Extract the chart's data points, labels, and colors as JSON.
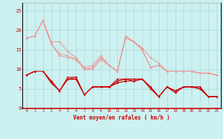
{
  "title": "Vent moyen/en rafales ( km/h )",
  "background_color": "#cdf0f0",
  "grid_color": "#aad8d8",
  "x_values": [
    0,
    1,
    2,
    3,
    4,
    5,
    6,
    7,
    8,
    9,
    10,
    11,
    12,
    13,
    14,
    15,
    16,
    17,
    18,
    19,
    20,
    21,
    22,
    23
  ],
  "lines_light": [
    [
      18.0,
      18.5,
      22.5,
      17.0,
      17.0,
      14.5,
      13.0,
      10.5,
      11.0,
      13.5,
      11.0,
      9.5,
      18.5,
      17.0,
      15.5,
      13.0,
      11.5,
      9.5,
      9.5,
      9.5,
      9.5,
      9.0,
      9.0,
      8.5
    ],
    [
      18.0,
      18.5,
      22.5,
      16.5,
      14.0,
      13.5,
      12.5,
      10.0,
      10.5,
      13.0,
      11.0,
      9.5,
      18.5,
      17.0,
      15.0,
      10.5,
      11.0,
      9.5,
      9.5,
      9.5,
      9.5,
      9.0,
      9.0,
      8.5
    ],
    [
      18.0,
      18.5,
      22.5,
      16.5,
      13.5,
      13.0,
      12.5,
      10.0,
      10.0,
      12.5,
      11.0,
      9.5,
      18.0,
      17.0,
      15.0,
      10.5,
      11.0,
      9.5,
      9.5,
      9.5,
      9.5,
      9.0,
      9.0,
      8.5
    ]
  ],
  "lines_dark": [
    [
      8.5,
      9.5,
      9.5,
      7.0,
      4.5,
      8.0,
      8.0,
      3.5,
      5.5,
      5.5,
      5.5,
      7.5,
      7.5,
      7.5,
      7.5,
      5.5,
      3.0,
      5.5,
      4.5,
      5.5,
      5.5,
      5.5,
      3.0,
      3.0
    ],
    [
      8.5,
      9.5,
      9.5,
      7.0,
      4.5,
      7.5,
      8.0,
      3.5,
      5.5,
      5.5,
      5.5,
      7.0,
      7.5,
      7.5,
      7.5,
      5.5,
      3.0,
      5.5,
      4.5,
      5.5,
      5.5,
      5.5,
      3.0,
      3.0
    ],
    [
      8.5,
      9.5,
      9.5,
      7.0,
      4.5,
      7.5,
      7.5,
      3.5,
      5.5,
      5.5,
      5.5,
      7.0,
      7.5,
      7.0,
      7.5,
      5.5,
      3.0,
      5.5,
      4.5,
      5.5,
      5.5,
      5.0,
      3.0,
      3.0
    ],
    [
      8.5,
      9.5,
      9.5,
      6.5,
      4.5,
      7.5,
      7.5,
      3.5,
      5.5,
      5.5,
      5.5,
      6.5,
      7.0,
      7.0,
      7.5,
      5.5,
      3.0,
      5.5,
      4.0,
      5.5,
      5.5,
      5.0,
      3.0,
      3.0
    ],
    [
      8.5,
      9.5,
      9.5,
      6.5,
      4.5,
      7.5,
      7.5,
      3.5,
      5.5,
      5.5,
      5.5,
      6.5,
      7.0,
      7.0,
      7.5,
      5.0,
      3.0,
      5.5,
      4.0,
      5.5,
      5.5,
      5.0,
      3.0,
      3.0
    ]
  ],
  "color_light": "#f09090",
  "color_dark": "#cc0000",
  "marker": "D",
  "marker_size": 1.5,
  "linewidth": 0.7,
  "ylim": [
    0,
    27
  ],
  "yticks": [
    0,
    5,
    10,
    15,
    20,
    25
  ],
  "xlim": [
    -0.5,
    23.5
  ]
}
